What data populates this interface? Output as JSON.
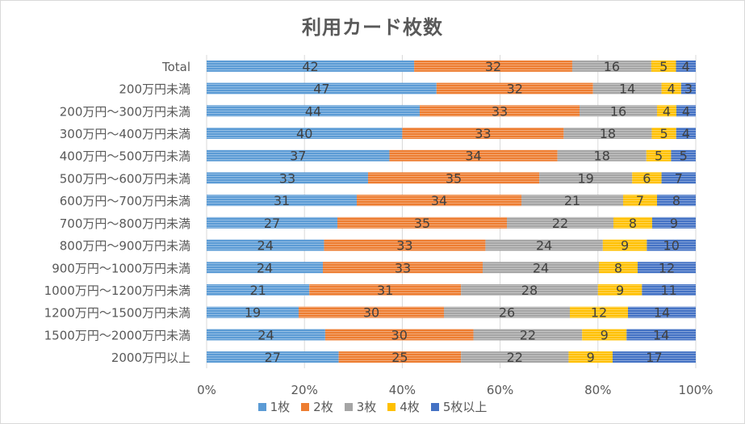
{
  "chart_data": {
    "type": "bar",
    "orientation": "horizontal",
    "stacked": "percent",
    "title": "利用カード枚数",
    "categories": [
      "Total",
      "200万円未満",
      "200万円～300万円未満",
      "300万円～400万円未満",
      "400万円～500万円未満",
      "500万円～600万円未満",
      "600万円～700万円未満",
      "700万円～800万円未満",
      "800万円～900万円未満",
      "900万円～1000万円未満",
      "1000万円～1200万円未満",
      "1200万円～1500万円未満",
      "1500万円～2000万円未満",
      "2000万円以上"
    ],
    "series": [
      {
        "name": "1枚",
        "color": "#5b9bd5",
        "values": [
          42,
          47,
          44,
          40,
          37,
          33,
          31,
          27,
          24,
          24,
          21,
          19,
          24,
          27
        ]
      },
      {
        "name": "2枚",
        "color": "#ed7d31",
        "values": [
          32,
          32,
          33,
          33,
          34,
          35,
          34,
          35,
          33,
          33,
          31,
          30,
          30,
          25
        ]
      },
      {
        "name": "3枚",
        "color": "#a5a5a5",
        "values": [
          16,
          14,
          16,
          18,
          18,
          19,
          21,
          22,
          24,
          24,
          28,
          26,
          22,
          22
        ]
      },
      {
        "name": "4枚",
        "color": "#ffc000",
        "values": [
          5,
          4,
          4,
          5,
          5,
          6,
          7,
          8,
          9,
          8,
          9,
          12,
          9,
          9
        ]
      },
      {
        "name": "5枚以上",
        "color": "#4472c4",
        "values": [
          4,
          3,
          4,
          4,
          5,
          7,
          8,
          9,
          10,
          12,
          11,
          14,
          14,
          17
        ]
      }
    ],
    "xlim": [
      0,
      100
    ],
    "x_ticks": [
      "0%",
      "20%",
      "40%",
      "60%",
      "80%",
      "100%"
    ],
    "gridlines": true,
    "data_labels": true,
    "legend_position": "bottom"
  }
}
